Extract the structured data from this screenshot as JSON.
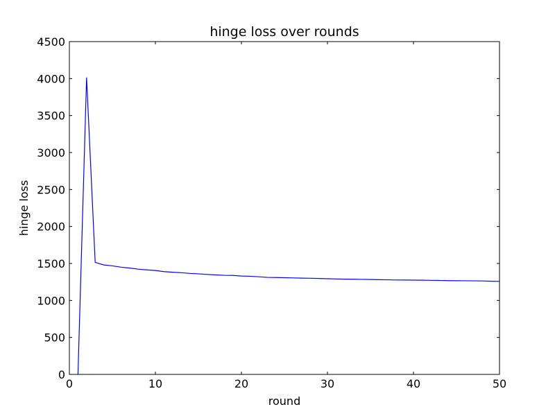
{
  "chart_data": {
    "type": "line",
    "title": "hinge loss over rounds",
    "xlabel": "round",
    "ylabel": "hinge loss",
    "xlim": [
      0,
      50
    ],
    "ylim": [
      0,
      4500
    ],
    "xticks": [
      0,
      10,
      20,
      30,
      40,
      50
    ],
    "yticks": [
      0,
      500,
      1000,
      1500,
      2000,
      2500,
      3000,
      3500,
      4000,
      4500
    ],
    "grid": false,
    "series": [
      {
        "color": "#0000ff",
        "x": [
          1,
          2,
          3,
          4,
          5,
          6,
          7,
          8,
          9,
          10,
          11,
          12,
          13,
          14,
          15,
          16,
          17,
          18,
          19,
          20,
          21,
          22,
          23,
          24,
          25,
          26,
          27,
          28,
          29,
          30,
          31,
          32,
          33,
          34,
          35,
          36,
          37,
          38,
          39,
          40,
          41,
          42,
          43,
          44,
          45,
          46,
          47,
          48,
          49,
          50
        ],
        "y": [
          0,
          4015,
          1515,
          1480,
          1468,
          1450,
          1438,
          1423,
          1413,
          1405,
          1390,
          1382,
          1375,
          1366,
          1360,
          1352,
          1345,
          1340,
          1338,
          1330,
          1327,
          1320,
          1312,
          1310,
          1308,
          1305,
          1302,
          1300,
          1297,
          1294,
          1291,
          1288,
          1287,
          1285,
          1283,
          1281,
          1279,
          1277,
          1276,
          1275,
          1274,
          1272,
          1270,
          1268,
          1267,
          1266,
          1265,
          1264,
          1260,
          1258
        ]
      }
    ]
  }
}
